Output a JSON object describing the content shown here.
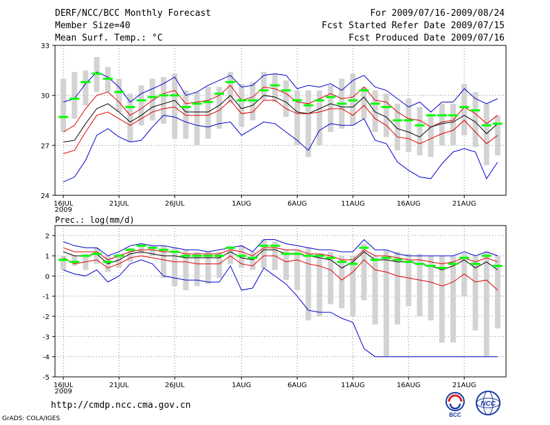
{
  "header": {
    "title": "DERF/NCC/BCC Monthly Forecast",
    "member_size": "Member Size=40",
    "variable": "Mean Surf. Temp.: °C",
    "period": "For 2009/07/16-2009/08/24",
    "refer_date": "Fcst Started Refer Date 2009/07/15",
    "produced_date": "Fcst Produced Date 2009/07/16"
  },
  "footer": {
    "url": "http://cmdp.ncc.cma.gov.cn",
    "credit": "GrADS: COLA/IGES",
    "logo_left_text": "BCC",
    "logo_right_text": "NCC"
  },
  "colors": {
    "box": "#d3d3d3",
    "median": "#00ff00",
    "max_min": "#0000cc",
    "spread": "#dd0000",
    "mean": "#000000",
    "grid": "#808080"
  },
  "chart_data": [
    {
      "type": "ensemble_box_line",
      "title": "",
      "ylabel": "Mean Surf. Temp.: °C",
      "ylim": [
        24,
        33
      ],
      "yticks": [
        24,
        27,
        30,
        33
      ],
      "x_tick_labels": [
        "16JUL",
        "21JUL",
        "26JUL",
        "1AUG",
        "6AUG",
        "11AUG",
        "16AUG",
        "21AUG"
      ],
      "x_tick_days": [
        1,
        6,
        11,
        17,
        22,
        27,
        32,
        37
      ],
      "x_year_label": "2009",
      "days": [
        1,
        2,
        3,
        4,
        5,
        6,
        7,
        8,
        9,
        10,
        11,
        12,
        13,
        14,
        15,
        16,
        17,
        18,
        19,
        20,
        21,
        22,
        23,
        24,
        25,
        26,
        27,
        28,
        29,
        30,
        31,
        32,
        33,
        34,
        35,
        36,
        37,
        38,
        39,
        40
      ],
      "box_top": [
        31.0,
        31.4,
        31.5,
        32.3,
        31.7,
        31.0,
        30.1,
        30.6,
        31.0,
        31.1,
        31.3,
        30.3,
        30.2,
        30.5,
        30.5,
        31.4,
        30.7,
        30.8,
        31.4,
        31.3,
        30.9,
        30.3,
        30.3,
        30.3,
        30.6,
        31.0,
        31.3,
        30.5,
        30.3,
        30.1,
        29.5,
        29.8,
        29.3,
        28.9,
        29.5,
        29.5,
        30.7,
        30.2,
        29.5,
        28.8
      ],
      "box_bottom": [
        27.8,
        28.6,
        29.4,
        30.2,
        30.2,
        29.0,
        27.2,
        28.2,
        28.5,
        28.3,
        27.4,
        27.4,
        27.0,
        27.4,
        28.0,
        29.6,
        28.1,
        28.5,
        29.7,
        29.6,
        28.7,
        27.0,
        26.3,
        27.0,
        27.8,
        28.0,
        28.2,
        28.6,
        27.8,
        27.5,
        26.7,
        26.6,
        26.4,
        26.3,
        27.0,
        27.0,
        27.6,
        26.9,
        25.8,
        26.4
      ],
      "median": [
        28.7,
        29.8,
        30.8,
        31.3,
        31.0,
        30.2,
        29.3,
        29.7,
        29.9,
        30.0,
        30.0,
        29.3,
        29.5,
        29.6,
        30.1,
        30.8,
        29.7,
        29.7,
        30.3,
        30.6,
        30.3,
        29.7,
        29.4,
        29.7,
        29.9,
        29.5,
        29.7,
        30.3,
        29.5,
        29.3,
        28.5,
        28.5,
        28.2,
        28.8,
        28.8,
        28.8,
        29.3,
        29.1,
        28.2,
        28.3
      ],
      "series": [
        {
          "name": "max",
          "values": [
            29.6,
            29.8,
            30.7,
            31.4,
            31.1,
            30.5,
            29.6,
            30.1,
            30.4,
            30.7,
            31.1,
            30.0,
            30.2,
            30.6,
            30.9,
            31.2,
            30.5,
            30.6,
            31.2,
            31.3,
            31.2,
            30.4,
            30.6,
            30.5,
            30.7,
            30.3,
            30.9,
            31.2,
            30.5,
            30.3,
            29.8,
            29.3,
            29.6,
            29.0,
            29.6,
            29.6,
            30.4,
            29.8,
            29.5,
            29.8
          ]
        },
        {
          "name": "mean+sd",
          "values": [
            27.8,
            28.2,
            29.2,
            30.0,
            30.2,
            29.6,
            28.8,
            29.2,
            29.7,
            30.1,
            30.3,
            29.5,
            29.6,
            29.7,
            30.0,
            30.6,
            29.7,
            29.9,
            30.5,
            30.4,
            30.1,
            29.6,
            29.5,
            29.8,
            30.1,
            29.8,
            29.9,
            30.5,
            29.7,
            29.6,
            29.0,
            28.6,
            28.5,
            28.1,
            28.4,
            28.5,
            29.3,
            28.9,
            28.3,
            28.8
          ]
        },
        {
          "name": "mean",
          "values": [
            27.2,
            27.3,
            28.3,
            29.2,
            29.5,
            29.0,
            28.4,
            28.8,
            29.3,
            29.5,
            29.7,
            29.0,
            29.0,
            29.0,
            29.4,
            30.0,
            29.2,
            29.4,
            30.0,
            29.9,
            29.6,
            29.0,
            28.9,
            29.2,
            29.5,
            29.3,
            29.3,
            29.9,
            29.0,
            28.7,
            28.0,
            27.8,
            27.5,
            28.1,
            28.3,
            28.4,
            28.8,
            28.4,
            27.7,
            28.3
          ]
        },
        {
          "name": "mean-sd",
          "values": [
            26.5,
            26.7,
            27.8,
            28.8,
            29.0,
            28.6,
            28.2,
            28.6,
            29.0,
            29.2,
            29.3,
            28.8,
            28.8,
            28.8,
            29.1,
            29.7,
            28.9,
            29.0,
            29.7,
            29.7,
            29.2,
            28.9,
            28.9,
            29.0,
            29.2,
            29.2,
            28.8,
            29.4,
            28.6,
            28.2,
            27.5,
            27.4,
            27.1,
            27.4,
            27.7,
            27.9,
            28.5,
            27.8,
            27.1,
            27.6
          ]
        },
        {
          "name": "min",
          "values": [
            24.8,
            25.1,
            26.1,
            27.6,
            28.0,
            27.5,
            27.2,
            27.3,
            28.1,
            28.8,
            28.7,
            28.4,
            28.2,
            28.1,
            28.3,
            28.4,
            27.6,
            28.0,
            28.4,
            28.3,
            27.8,
            27.3,
            26.7,
            27.9,
            28.3,
            28.2,
            28.2,
            28.6,
            27.3,
            27.1,
            26.0,
            25.5,
            25.1,
            25.0,
            25.9,
            26.6,
            26.8,
            26.6,
            25.0,
            26.0
          ]
        }
      ]
    },
    {
      "type": "ensemble_box_line",
      "title": "Prec.: log(mm/d)",
      "ylabel": "Prec.: log(mm/d)",
      "ylim": [
        -5,
        2.5
      ],
      "yticks": [
        -5,
        -4,
        -3,
        -2,
        -1,
        0,
        1,
        2
      ],
      "x_tick_labels": [
        "16JUL",
        "21JUL",
        "26JUL",
        "1AUG",
        "6AUG",
        "11AUG",
        "16AUG",
        "21AUG"
      ],
      "x_tick_days": [
        1,
        6,
        11,
        17,
        22,
        27,
        32,
        37
      ],
      "x_year_label": "2009",
      "days": [
        1,
        2,
        3,
        4,
        5,
        6,
        7,
        8,
        9,
        10,
        11,
        12,
        13,
        14,
        15,
        16,
        17,
        18,
        19,
        20,
        21,
        22,
        23,
        24,
        25,
        26,
        27,
        28,
        29,
        30,
        31,
        32,
        33,
        34,
        35,
        36,
        37,
        38,
        39,
        40
      ],
      "box_top": [
        1.0,
        1.0,
        1.1,
        1.4,
        1.0,
        1.1,
        1.4,
        1.6,
        1.5,
        1.5,
        1.4,
        1.3,
        1.2,
        1.2,
        1.2,
        1.5,
        1.5,
        1.2,
        1.8,
        1.7,
        1.3,
        1.3,
        1.4,
        1.1,
        1.2,
        1.0,
        1.0,
        1.6,
        1.0,
        1.3,
        1.2,
        1.1,
        1.1,
        1.0,
        1.0,
        1.0,
        1.1,
        1.0,
        1.2,
        1.0
      ],
      "box_bottom": [
        0.3,
        0.5,
        0.3,
        0.6,
        0.2,
        0.4,
        0.7,
        1.1,
        1.0,
        -0.1,
        -0.5,
        -0.7,
        -0.5,
        -0.4,
        -0.1,
        0.6,
        0.4,
        0.3,
        0.4,
        0.3,
        -0.2,
        -0.7,
        -2.2,
        -2.0,
        -1.4,
        -1.6,
        -2.0,
        -1.2,
        -2.4,
        -4.0,
        -2.4,
        -1.5,
        -2.0,
        -2.2,
        -3.3,
        -3.3,
        -1.0,
        -2.7,
        -4.0,
        -2.6
      ],
      "median": [
        0.8,
        0.7,
        1.0,
        1.1,
        0.7,
        1.0,
        1.3,
        1.5,
        1.4,
        1.3,
        1.2,
        1.0,
        1.0,
        1.0,
        1.0,
        1.4,
        1.0,
        0.9,
        1.5,
        1.5,
        1.1,
        1.1,
        1.0,
        1.0,
        0.9,
        0.7,
        0.6,
        1.4,
        0.8,
        0.9,
        0.8,
        0.7,
        0.6,
        0.5,
        0.4,
        0.6,
        0.9,
        0.6,
        1.0,
        0.5
      ],
      "series": [
        {
          "name": "max",
          "values": [
            1.7,
            1.5,
            1.4,
            1.4,
            1.0,
            1.2,
            1.5,
            1.6,
            1.5,
            1.5,
            1.4,
            1.3,
            1.3,
            1.2,
            1.3,
            1.4,
            1.5,
            1.2,
            1.8,
            1.8,
            1.6,
            1.5,
            1.4,
            1.3,
            1.3,
            1.2,
            1.2,
            1.8,
            1.3,
            1.3,
            1.1,
            1.0,
            1.0,
            1.0,
            1.0,
            1.0,
            1.2,
            1.0,
            1.2,
            1.0
          ]
        },
        {
          "name": "mean+sd",
          "values": [
            1.4,
            1.2,
            1.2,
            1.2,
            0.8,
            1.0,
            1.2,
            1.3,
            1.3,
            1.2,
            1.2,
            1.1,
            1.1,
            1.1,
            1.1,
            1.3,
            1.2,
            1.0,
            1.4,
            1.4,
            1.3,
            1.3,
            1.1,
            1.1,
            1.0,
            0.8,
            0.8,
            1.3,
            1.0,
            1.0,
            0.9,
            0.8,
            0.8,
            0.7,
            0.6,
            0.7,
            0.9,
            0.7,
            0.9,
            0.7
          ]
        },
        {
          "name": "mean",
          "values": [
            1.2,
            1.0,
            1.0,
            1.1,
            0.6,
            0.8,
            1.1,
            1.2,
            1.1,
            1.0,
            1.0,
            0.9,
            0.9,
            0.9,
            0.9,
            1.2,
            0.9,
            0.8,
            1.3,
            1.3,
            1.1,
            1.1,
            1.0,
            0.9,
            0.8,
            0.4,
            0.7,
            1.2,
            0.8,
            0.8,
            0.7,
            0.7,
            0.6,
            0.5,
            0.3,
            0.5,
            0.8,
            0.4,
            0.7,
            0.3
          ]
        },
        {
          "name": "mean-sd",
          "values": [
            0.9,
            0.6,
            0.7,
            0.8,
            0.4,
            0.6,
            0.9,
            1.0,
            0.9,
            0.8,
            0.7,
            0.7,
            0.6,
            0.6,
            0.6,
            1.0,
            0.6,
            0.5,
            1.0,
            1.0,
            0.7,
            0.8,
            0.6,
            0.5,
            0.3,
            -0.2,
            0.2,
            0.8,
            0.3,
            0.2,
            0.0,
            -0.1,
            -0.2,
            -0.3,
            -0.5,
            -0.3,
            0.1,
            -0.3,
            -0.2,
            -0.7
          ]
        },
        {
          "name": "min",
          "values": [
            0.3,
            0.1,
            0.0,
            0.3,
            -0.3,
            0.0,
            0.6,
            0.8,
            0.6,
            0.0,
            -0.1,
            -0.2,
            -0.2,
            -0.3,
            -0.3,
            0.5,
            -0.7,
            -0.6,
            0.4,
            0.0,
            -0.4,
            -1.0,
            -1.7,
            -1.8,
            -1.8,
            -2.1,
            -2.3,
            -3.6,
            -4.0,
            -4.0,
            -4.0,
            -4.0,
            -4.0,
            -4.0,
            -4.0,
            -4.0,
            -4.0,
            -4.0,
            -4.0,
            -4.0
          ]
        }
      ]
    }
  ]
}
